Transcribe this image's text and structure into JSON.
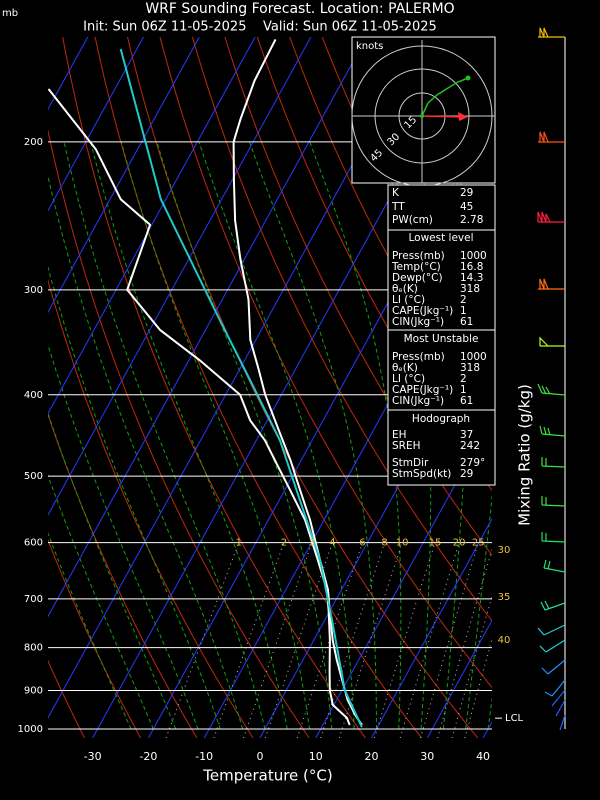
{
  "chart_data": {
    "type": "skewt",
    "title": "WRF Sounding Forecast. Location: PALERMO",
    "subtitle": "Init: Sun 06Z 11-05-2025    Valid: Sun 06Z 11-05-2025",
    "x_label": "Temperature (°C)",
    "y_unit": "mb",
    "y2_label": "Mixing Ratio (g/kg)",
    "lcl_label": "LCL",
    "xlim": [
      -38,
      41.6
    ],
    "xticks": [
      -30,
      -20,
      -10,
      0,
      10,
      20,
      30,
      40
    ],
    "ylim": [
      1025,
      150
    ],
    "yticks": [
      200,
      300,
      400,
      500,
      600,
      700,
      800,
      900,
      1000
    ],
    "log_scale": true,
    "mixing_ratio_labels": [
      1,
      2,
      3,
      4,
      6,
      8,
      10,
      15,
      20,
      25,
      30,
      35,
      40
    ],
    "series": [
      {
        "color": "#ffffff",
        "pressure": [
          989,
          962,
          924,
          874,
          828,
          784,
          722,
          683,
          629,
          564,
          519,
          478,
          440,
          400,
          373,
          344,
          308,
          276,
          248,
          222,
          200,
          188,
          169,
          151
        ],
        "values": [
          17.0,
          14.8,
          12.0,
          9.0,
          6.1,
          3.4,
          -0.1,
          -2.4,
          -6.8,
          -12.5,
          -17.3,
          -22.0,
          -27.1,
          -32.9,
          -36.6,
          -41.0,
          -45.3,
          -50.7,
          -55.5,
          -59.7,
          -63.5,
          -64.5,
          -65.8,
          -66.1
        ]
      },
      {
        "color": "#ffffff",
        "pressure": [
          989,
          970,
          954,
          936,
          899,
          851,
          784,
          722,
          683,
          629,
          564,
          519,
          492,
          453,
          429,
          400,
          364,
          335,
          300,
          251,
          234,
          204,
          173
        ],
        "values": [
          14.8,
          13.6,
          11.8,
          9.8,
          7.8,
          5.8,
          2.9,
          -0.3,
          -2.6,
          -7.2,
          -13.4,
          -19.1,
          -22.8,
          -28.5,
          -33.1,
          -37.4,
          -48.0,
          -58.1,
          -68.0,
          -70.3,
          -78.1,
          -87.5,
          -101.9
        ]
      },
      {
        "color": "#20c8c8",
        "pressure": [
          995,
          899,
          742,
          629,
          534,
          453,
          384,
          326,
          276,
          234,
          155
        ],
        "values": [
          17.2,
          10.5,
          1.3,
          -6.8,
          -16.3,
          -25.8,
          -37.1,
          -48.4,
          -59.7,
          -70.9,
          -92.9
        ]
      }
    ]
  },
  "panels": {
    "indices": [
      [
        "K",
        29
      ],
      [
        "TT",
        45
      ],
      [
        "PW(cm)",
        2.78
      ]
    ],
    "lowest_level": {
      "title": "Lowest level",
      "rows": [
        [
          "Press(mb)",
          1000
        ],
        [
          "Temp(°C)",
          16.8
        ],
        [
          "Dewp(°C)",
          14.3
        ],
        [
          "θₑ(K)",
          318
        ],
        [
          "LI (°C)",
          2
        ],
        [
          "CAPE(Jkg⁻¹)",
          1
        ],
        [
          "CIN(Jkg⁻¹)",
          61
        ]
      ]
    },
    "most_unstable": {
      "title": "Most Unstable",
      "rows": [
        [
          "Press(mb)",
          1000
        ],
        [
          "θₑ(K)",
          318
        ],
        [
          "LI (°C)",
          2
        ],
        [
          "CAPE(Jkg⁻¹)",
          1
        ],
        [
          "CIN(Jkg⁻¹)",
          61
        ]
      ]
    },
    "hodograph": {
      "title": "Hodograph",
      "rows": [
        [
          "EH",
          37
        ],
        [
          "SREH",
          242
        ],
        [
          "StmDir",
          "279°"
        ],
        [
          "StmSpd(kt)",
          29
        ]
      ],
      "unit": "knots",
      "rings": [
        "15",
        "30",
        "45"
      ]
    }
  }
}
